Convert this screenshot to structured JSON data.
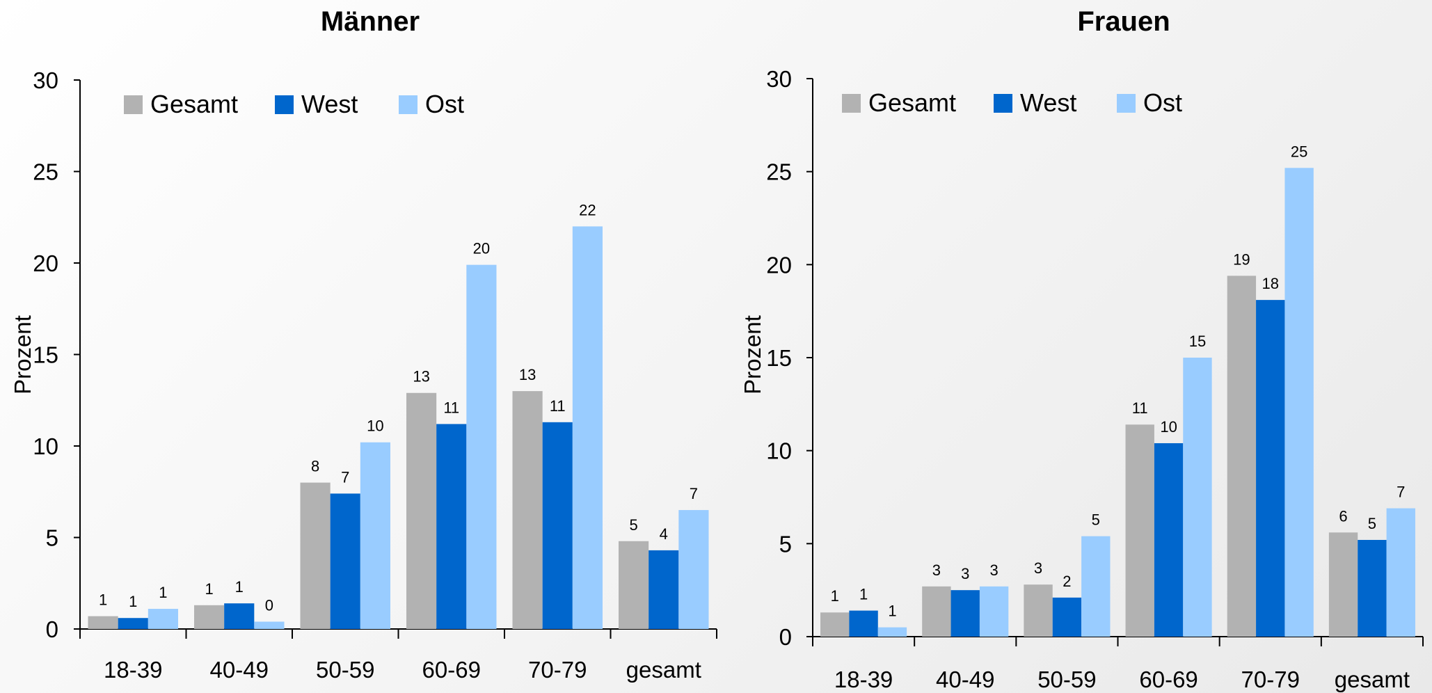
{
  "charts": [
    {
      "type": "bar",
      "title": "Männer",
      "ylabel": "Prozent",
      "ylim": [
        0,
        30
      ],
      "yticks": [
        0,
        5,
        10,
        15,
        20,
        25,
        30
      ],
      "categories": [
        "18-39",
        "40-49",
        "50-59",
        "60-69",
        "70-79",
        "gesamt"
      ],
      "legend_position": "top-left",
      "series": [
        {
          "name": "Gesamt",
          "color": "#b2b2b2",
          "values": [
            0.7,
            1.3,
            8.0,
            12.9,
            13.0,
            4.8
          ],
          "labels": [
            "1",
            "1",
            "8",
            "13",
            "13",
            "5"
          ]
        },
        {
          "name": "West",
          "color": "#0066cc",
          "values": [
            0.6,
            1.4,
            7.4,
            11.2,
            11.3,
            4.3
          ],
          "labels": [
            "1",
            "1",
            "7",
            "11",
            "11",
            "4"
          ]
        },
        {
          "name": "Ost",
          "color": "#99ccff",
          "values": [
            1.1,
            0.4,
            10.2,
            19.9,
            22.0,
            6.5
          ],
          "labels": [
            "1",
            "0",
            "10",
            "20",
            "22",
            "7"
          ]
        }
      ]
    },
    {
      "type": "bar",
      "title": "Frauen",
      "ylabel": "Prozent",
      "ylim": [
        0,
        30
      ],
      "yticks": [
        0,
        5,
        10,
        15,
        20,
        25,
        30
      ],
      "categories": [
        "18-39",
        "40-49",
        "50-59",
        "60-69",
        "70-79",
        "gesamt"
      ],
      "legend_position": "top-left",
      "series": [
        {
          "name": "Gesamt",
          "color": "#b2b2b2",
          "values": [
            1.3,
            2.7,
            2.8,
            11.4,
            19.4,
            5.6
          ],
          "labels": [
            "1",
            "3",
            "3",
            "11",
            "19",
            "6"
          ]
        },
        {
          "name": "West",
          "color": "#0066cc",
          "values": [
            1.4,
            2.5,
            2.1,
            10.4,
            18.1,
            5.2
          ],
          "labels": [
            "1",
            "3",
            "2",
            "10",
            "18",
            "5"
          ]
        },
        {
          "name": "Ost",
          "color": "#99ccff",
          "values": [
            0.5,
            2.7,
            5.4,
            15.0,
            25.2,
            6.9
          ],
          "labels": [
            "1",
            "3",
            "5",
            "15",
            "25",
            "7"
          ]
        }
      ]
    }
  ]
}
